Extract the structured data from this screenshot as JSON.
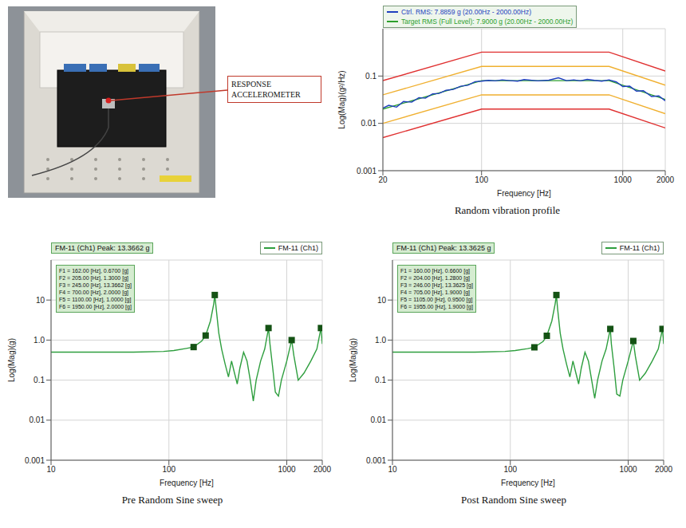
{
  "photo": {
    "callout": "RESPONSE ACCELEROMETER"
  },
  "chart_data": [
    {
      "type": "line",
      "title": "Random vibration profile",
      "x_label": "Frequency [Hz]",
      "y_label": "Log(Mag)(g²/Hz)",
      "log": true,
      "grid": true,
      "legend": "upper left",
      "xlim": [
        20,
        2000
      ],
      "xticks": [
        20,
        100,
        1000,
        2000
      ],
      "ylim": [
        0.001,
        1
      ],
      "yticks": [
        0.001,
        0.01,
        0.1
      ],
      "series": [
        {
          "name": "Ctrl. RMS: 7.8859 g (20.00Hz - 2000.00Hz)",
          "color": "#1f3fbf",
          "x": [
            20,
            22,
            25,
            28,
            32,
            36,
            40,
            45,
            50,
            56,
            63,
            71,
            80,
            90,
            100,
            112,
            125,
            140,
            160,
            180,
            200,
            250,
            300,
            350,
            400,
            450,
            500,
            560,
            630,
            710,
            800,
            900,
            1000,
            1120,
            1250,
            1400,
            1600,
            1800,
            2000
          ],
          "values": [
            0.021,
            0.024,
            0.022,
            0.029,
            0.028,
            0.035,
            0.034,
            0.042,
            0.043,
            0.05,
            0.052,
            0.061,
            0.064,
            0.076,
            0.078,
            0.081,
            0.079,
            0.083,
            0.08,
            0.078,
            0.084,
            0.079,
            0.082,
            0.092,
            0.08,
            0.083,
            0.079,
            0.085,
            0.081,
            0.078,
            0.083,
            0.075,
            0.06,
            0.061,
            0.048,
            0.049,
            0.037,
            0.038,
            0.03
          ]
        },
        {
          "name": "Target RMS (Full Level): 7.9000 g (20.00Hz - 2000.00Hz)",
          "color": "#2ca02c",
          "x": [
            20,
            100,
            800,
            2000
          ],
          "values": [
            0.02,
            0.08,
            0.08,
            0.032
          ]
        },
        {
          "color": "#f0b030",
          "x": [
            20,
            100,
            800,
            2000
          ],
          "values": [
            0.04,
            0.16,
            0.16,
            0.064
          ]
        },
        {
          "color": "#f0b030",
          "x": [
            20,
            100,
            800,
            2000
          ],
          "values": [
            0.01,
            0.04,
            0.04,
            0.016
          ]
        },
        {
          "color": "#e03030",
          "x": [
            20,
            100,
            800,
            2000
          ],
          "values": [
            0.08,
            0.32,
            0.32,
            0.128
          ]
        },
        {
          "color": "#e03030",
          "x": [
            20,
            100,
            800,
            2000
          ],
          "values": [
            0.005,
            0.02,
            0.02,
            0.008
          ]
        }
      ]
    },
    {
      "type": "line",
      "title": "Pre Random Sine sweep",
      "x_label": "Frequency [Hz]",
      "y_label": "Log(Mag)(g)",
      "annotation": "FM-11 (Ch1)  Peak: 13.3662 g",
      "log": true,
      "grid": true,
      "legend": "upper right",
      "xlim": [
        10,
        2000
      ],
      "xticks": [
        10,
        100,
        1000,
        2000
      ],
      "ylim": [
        0.001,
        100
      ],
      "yticks": [
        0.001,
        0.01,
        0.1,
        {
          "value": 1,
          "label": "1.0"
        },
        10
      ],
      "series": [
        {
          "name": "FM-11 (Ch1)",
          "color": "#2e9e3e",
          "x": [
            10,
            50,
            90,
            110,
            140,
            162,
            190,
            205,
            225,
            240,
            245,
            252,
            265,
            280,
            300,
            320,
            340,
            360,
            380,
            400,
            430,
            460,
            490,
            520,
            550,
            600,
            650,
            700,
            720,
            760,
            800,
            850,
            900,
            1000,
            1100,
            1150,
            1250,
            1400,
            1600,
            1800,
            1950,
            2000
          ],
          "values": [
            0.5,
            0.5,
            0.52,
            0.55,
            0.62,
            0.67,
            0.95,
            1.3,
            3,
            8,
            13.3662,
            6,
            1.5,
            0.6,
            0.25,
            0.12,
            0.3,
            0.15,
            0.08,
            0.2,
            0.5,
            0.3,
            0.1,
            0.03,
            0.1,
            0.3,
            0.6,
            2.0,
            0.8,
            0.2,
            0.05,
            0.04,
            0.1,
            0.3,
            1.0,
            0.4,
            0.1,
            0.15,
            0.3,
            0.6,
            2.0,
            0.8
          ]
        }
      ],
      "markers": [
        {
          "x": 162,
          "y": 0.67,
          "label": "F1 = 162.00 [Hz], 0.6700 [g]"
        },
        {
          "x": 205,
          "y": 1.3,
          "label": "F2 = 205.00 [Hz], 1.3000 [g]"
        },
        {
          "x": 245,
          "y": 13.3662,
          "label": "F3 = 245.00 [Hz], 13.3662 [g]"
        },
        {
          "x": 700,
          "y": 2.0,
          "label": "F4 = 700.00 [Hz], 2.0000 [g]"
        },
        {
          "x": 1100,
          "y": 1.0,
          "label": "F5 = 1100.00 [Hz], 1.0000 [g]"
        },
        {
          "x": 1950,
          "y": 2.0,
          "label": "F6 = 1950.00 [Hz], 2.0000 [g]"
        }
      ]
    },
    {
      "type": "line",
      "title": "Post Random Sine sweep",
      "x_label": "Frequency [Hz]",
      "y_label": "Log(Mag)(g)",
      "annotation": "FM-11 (Ch1)  Peak: 13.3625 g",
      "log": true,
      "grid": true,
      "legend": "upper right",
      "xlim": [
        10,
        2000
      ],
      "xticks": [
        10,
        100,
        1000,
        2000
      ],
      "ylim": [
        0.001,
        100
      ],
      "yticks": [
        0.001,
        0.01,
        0.1,
        {
          "value": 1,
          "label": "1.0"
        },
        10
      ],
      "series": [
        {
          "name": "FM-11 (Ch1)",
          "color": "#2e9e3e",
          "x": [
            10,
            50,
            90,
            110,
            140,
            160,
            190,
            204,
            225,
            240,
            246,
            252,
            265,
            280,
            300,
            320,
            340,
            360,
            380,
            400,
            430,
            460,
            490,
            520,
            550,
            600,
            650,
            705,
            720,
            760,
            800,
            850,
            900,
            1000,
            1105,
            1150,
            1250,
            1400,
            1600,
            1800,
            1955,
            2000
          ],
          "values": [
            0.5,
            0.5,
            0.52,
            0.55,
            0.61,
            0.66,
            0.93,
            1.28,
            3,
            8,
            13.3625,
            6,
            1.5,
            0.6,
            0.25,
            0.12,
            0.3,
            0.15,
            0.08,
            0.2,
            0.5,
            0.3,
            0.1,
            0.035,
            0.1,
            0.3,
            0.6,
            1.9,
            0.8,
            0.2,
            0.045,
            0.04,
            0.1,
            0.3,
            0.95,
            0.4,
            0.1,
            0.15,
            0.3,
            0.6,
            1.9,
            0.8
          ]
        }
      ],
      "markers": [
        {
          "x": 160,
          "y": 0.66,
          "label": "F1 = 160.00 [Hz], 0.6600 [g]"
        },
        {
          "x": 204,
          "y": 1.28,
          "label": "F2 = 204.00 [Hz], 1.2800 [g]"
        },
        {
          "x": 246,
          "y": 13.3625,
          "label": "F3 = 246.00 [Hz], 13.3625 [g]"
        },
        {
          "x": 705,
          "y": 1.9,
          "label": "F4 = 705.00 [Hz], 1.9000 [g]"
        },
        {
          "x": 1105,
          "y": 0.95,
          "label": "F5 = 1105.00 [Hz], 0.9500 [g]"
        },
        {
          "x": 1955,
          "y": 1.9,
          "label": "F6 = 1955.00 [Hz], 1.9000 [g]"
        }
      ]
    }
  ]
}
